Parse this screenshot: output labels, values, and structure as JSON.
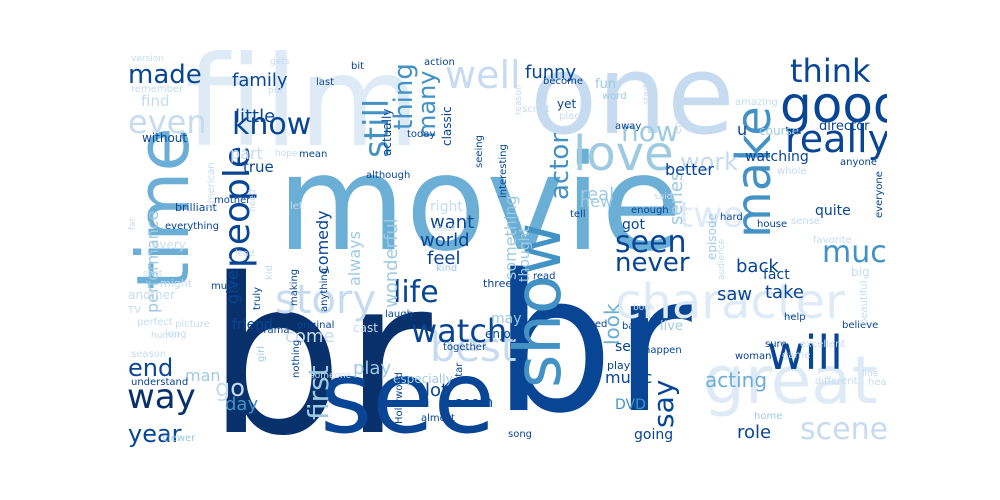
{
  "palette": [
    "#08306b",
    "#084594",
    "#2171b5",
    "#4292c6",
    "#6baed6",
    "#9ecae1",
    "#c6dbef",
    "#deebf7"
  ],
  "words": [
    {
      "text": "br",
      "shade": 0
    },
    {
      "text": "movie",
      "shade": 4
    },
    {
      "text": "br",
      "shade": 1
    },
    {
      "text": "film",
      "shade": 7
    },
    {
      "text": "one",
      "shade": 6
    },
    {
      "text": "see",
      "shade": 1
    },
    {
      "text": "time",
      "shade": 4
    },
    {
      "text": "good",
      "shade": 1
    },
    {
      "text": "show",
      "shade": 3
    },
    {
      "text": "great",
      "shade": 7
    },
    {
      "text": "character",
      "shade": 7
    },
    {
      "text": "love",
      "shade": 5
    },
    {
      "text": "story",
      "shade": 6
    },
    {
      "text": "make",
      "shade": 3
    },
    {
      "text": "will",
      "shade": 1
    },
    {
      "text": "people",
      "shade": 1
    },
    {
      "text": "well",
      "shade": 6
    },
    {
      "text": "think",
      "shade": 1
    },
    {
      "text": "really",
      "shade": 1
    },
    {
      "text": "best",
      "shade": 6
    },
    {
      "text": "way",
      "shade": 0
    },
    {
      "text": "much",
      "shade": 3
    },
    {
      "text": "scene",
      "shade": 6
    },
    {
      "text": "watch",
      "shade": 1
    },
    {
      "text": "life",
      "shade": 1
    },
    {
      "text": "seen",
      "shade": 1
    },
    {
      "text": "made",
      "shade": 1
    },
    {
      "text": "know",
      "shade": 1
    },
    {
      "text": "even",
      "shade": 6
    },
    {
      "text": "never",
      "shade": 1
    },
    {
      "text": "still",
      "shade": 3
    },
    {
      "text": "first",
      "shade": 5
    },
    {
      "text": "two",
      "shade": 7
    },
    {
      "text": "actor",
      "shade": 3
    },
    {
      "text": "year",
      "shade": 1
    },
    {
      "text": "end",
      "shade": 1
    },
    {
      "text": "say",
      "shade": 1
    },
    {
      "text": "now",
      "shade": 5
    },
    {
      "text": "many",
      "shade": 3
    },
    {
      "text": "thing",
      "shade": 3
    },
    {
      "text": "work",
      "shade": 6
    },
    {
      "text": "look",
      "shade": 4
    },
    {
      "text": "acting",
      "shade": 4
    },
    {
      "text": "funny",
      "shade": 1
    },
    {
      "text": "family",
      "shade": 1
    },
    {
      "text": "little",
      "shade": 1
    },
    {
      "text": "feel",
      "shade": 1
    },
    {
      "text": "lot",
      "shade": 1
    },
    {
      "text": "role",
      "shade": 1
    },
    {
      "text": "saw",
      "shade": 1
    },
    {
      "text": "back",
      "shade": 1
    },
    {
      "text": "take",
      "shade": 1
    },
    {
      "text": "world",
      "shade": 1
    },
    {
      "text": "want",
      "shade": 1
    },
    {
      "text": "real",
      "shade": 5
    },
    {
      "text": "play",
      "shade": 5
    },
    {
      "text": "day",
      "shade": 3
    },
    {
      "text": "music",
      "shade": 1
    },
    {
      "text": "series",
      "shade": 5
    },
    {
      "text": "performance",
      "shade": 5
    },
    {
      "text": "comedy",
      "shade": 1
    },
    {
      "text": "always",
      "shade": 5
    },
    {
      "text": "wonderful",
      "shade": 5
    },
    {
      "text": "something",
      "shade": 5
    },
    {
      "text": "give",
      "shade": 1
    },
    {
      "text": "man",
      "shade": 5
    },
    {
      "text": "go",
      "shade": 6
    },
    {
      "text": "part",
      "shade": 6
    },
    {
      "text": "true",
      "shade": 1
    },
    {
      "text": "find",
      "shade": 6
    },
    {
      "text": "come",
      "shade": 6
    },
    {
      "text": "friend",
      "shade": 1
    },
    {
      "text": "got",
      "shade": 1
    },
    {
      "text": "better",
      "shade": 1
    },
    {
      "text": "new",
      "shade": 5
    },
    {
      "text": "right",
      "shade": 6
    },
    {
      "text": "fact",
      "shade": 1
    },
    {
      "text": "quite",
      "shade": 1
    },
    {
      "text": "watching",
      "shade": 1
    },
    {
      "text": "course",
      "shade": 5
    },
    {
      "text": "director",
      "shade": 1
    },
    {
      "text": "set",
      "shade": 1
    },
    {
      "text": "going",
      "shade": 1
    },
    {
      "text": "DVD",
      "shade": 3
    },
    {
      "text": "seem",
      "shade": 1
    },
    {
      "text": "may",
      "shade": 5
    },
    {
      "text": "thought",
      "shade": 5
    },
    {
      "text": "enjoy",
      "shade": 1
    },
    {
      "text": "episode",
      "shade": 5
    },
    {
      "text": "yet",
      "shade": 1
    },
    {
      "text": "u",
      "shade": 1
    },
    {
      "text": "action",
      "shade": 1
    },
    {
      "text": "become",
      "shade": 1
    },
    {
      "text": "classic",
      "shade": 1
    },
    {
      "text": "actually",
      "shade": 1
    },
    {
      "text": "interesting",
      "shade": 1
    },
    {
      "text": "seeing",
      "shade": 1
    },
    {
      "text": "today",
      "shade": 1
    },
    {
      "text": "fun",
      "shade": 5
    },
    {
      "text": "word",
      "shade": 5
    },
    {
      "text": "although",
      "shade": 1
    },
    {
      "text": "mean",
      "shade": 1
    },
    {
      "text": "hope",
      "shade": 6
    },
    {
      "text": "mother",
      "shade": 1
    },
    {
      "text": "brilliant",
      "shade": 1
    },
    {
      "text": "everything",
      "shade": 1
    },
    {
      "text": "every",
      "shade": 6
    },
    {
      "text": "another",
      "shade": 6
    },
    {
      "text": "might",
      "shade": 6
    },
    {
      "text": "must",
      "shade": 1
    },
    {
      "text": "making",
      "shade": 1
    },
    {
      "text": "anything",
      "shade": 1
    },
    {
      "text": "truly",
      "shade": 1
    },
    {
      "text": "laugh",
      "shade": 1
    },
    {
      "text": "three",
      "shade": 1
    },
    {
      "text": "read",
      "shade": 1
    },
    {
      "text": "kind",
      "shade": 5
    },
    {
      "text": "least",
      "shade": 6
    },
    {
      "text": "tell",
      "shade": 1
    },
    {
      "text": "live",
      "shade": 5
    },
    {
      "text": "bad",
      "shade": 1
    },
    {
      "text": "book",
      "shade": 6
    },
    {
      "text": "loved",
      "shade": 1
    },
    {
      "text": "played",
      "shade": 1
    },
    {
      "text": "happen",
      "shade": 1
    },
    {
      "text": "woman",
      "shade": 1
    },
    {
      "text": "sure",
      "shade": 1
    },
    {
      "text": "help",
      "shade": 1
    },
    {
      "text": "believe",
      "shade": 1
    },
    {
      "text": "different",
      "shade": 6
    },
    {
      "text": "heart",
      "shade": 6
    },
    {
      "text": "home",
      "shade": 5
    },
    {
      "text": "song",
      "shade": 1
    },
    {
      "text": "almost",
      "shade": 1
    },
    {
      "text": "star",
      "shade": 1
    },
    {
      "text": "especially",
      "shade": 5
    },
    {
      "text": "together",
      "shade": 1
    },
    {
      "text": "original",
      "shade": 1
    },
    {
      "text": "drama",
      "shade": 1
    },
    {
      "text": "girl",
      "shade": 5
    },
    {
      "text": "nothing",
      "shade": 1
    },
    {
      "text": "Hollywood",
      "shade": 1
    },
    {
      "text": "understand",
      "shade": 1
    },
    {
      "text": "season",
      "shade": 6
    },
    {
      "text": "long",
      "shade": 6
    },
    {
      "text": "perfect",
      "shade": 6
    },
    {
      "text": "viewer",
      "shade": 5
    },
    {
      "text": "remember",
      "shade": 6
    },
    {
      "text": "without",
      "shade": 1
    },
    {
      "text": "version",
      "shade": 6
    },
    {
      "text": "gets",
      "shade": 6
    },
    {
      "text": "bit",
      "shade": 1
    },
    {
      "text": "last",
      "shade": 1
    },
    {
      "text": "put",
      "shade": 6
    },
    {
      "text": "reason",
      "shade": 6
    },
    {
      "text": "script",
      "shade": 6
    },
    {
      "text": "place",
      "shade": 6
    },
    {
      "text": "start",
      "shade": 6
    },
    {
      "text": "ending",
      "shade": 6
    },
    {
      "text": "amazing",
      "shade": 6
    },
    {
      "text": "away",
      "shade": 1
    },
    {
      "text": "said",
      "shade": 6
    },
    {
      "text": "enough",
      "shade": 1
    },
    {
      "text": "hard",
      "shade": 1
    },
    {
      "text": "house",
      "shade": 1
    },
    {
      "text": "sense",
      "shade": 6
    },
    {
      "text": "whole",
      "shade": 6
    },
    {
      "text": "anyone",
      "shade": 1
    },
    {
      "text": "everyone",
      "shade": 1
    },
    {
      "text": "favorite",
      "shade": 6
    },
    {
      "text": "big",
      "shade": 6
    },
    {
      "text": "beautiful",
      "shade": 6
    },
    {
      "text": "excellent",
      "shade": 6
    },
    {
      "text": "game",
      "shade": 6
    },
    {
      "text": "audience",
      "shade": 6
    },
    {
      "text": "need",
      "shade": 6
    },
    {
      "text": "let",
      "shade": 6
    },
    {
      "text": "American",
      "shade": 6
    },
    {
      "text": "picture",
      "shade": 6
    },
    {
      "text": "humor",
      "shade": 6
    },
    {
      "text": "cast",
      "shade": 6
    },
    {
      "text": "someone",
      "shade": 6
    },
    {
      "text": "TV",
      "shade": 6
    },
    {
      "text": "kid",
      "shade": 6
    },
    {
      "text": "far",
      "shade": 6
    },
    {
      "text": "shot",
      "shade": 6
    },
    {
      "text": "line",
      "shade": 6
    },
    {
      "text": "lead",
      "shade": 6
    }
  ]
}
